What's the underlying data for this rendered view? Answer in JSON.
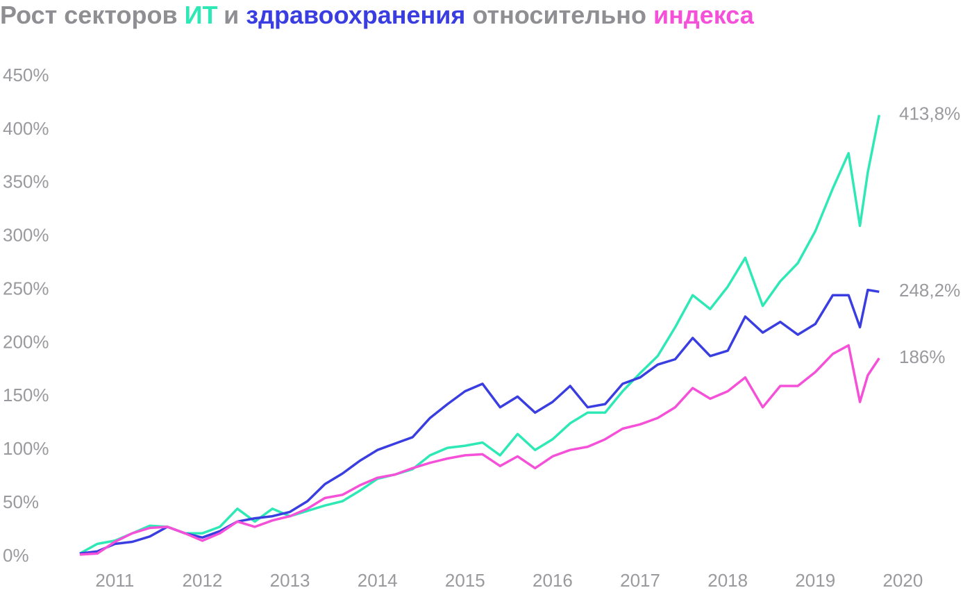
{
  "chart_data": {
    "type": "line",
    "title_parts": [
      "Рост секторов",
      "и",
      "относительно"
    ],
    "title_color": "#8e8e93",
    "xlim": [
      2010.45,
      2020.1
    ],
    "xticks": [
      2011,
      2012,
      2013,
      2014,
      2015,
      2016,
      2017,
      2018,
      2019,
      2020
    ],
    "ylim": [
      0,
      450
    ],
    "yticks": [
      {
        "value": 0,
        "label": "0%"
      },
      {
        "value": 50,
        "label": "50%"
      },
      {
        "value": 100,
        "label": "100%"
      },
      {
        "value": 150,
        "label": "150%"
      },
      {
        "value": 200,
        "label": "200%"
      },
      {
        "value": 250,
        "label": "250%"
      },
      {
        "value": 300,
        "label": "300%"
      },
      {
        "value": 350,
        "label": "350%"
      },
      {
        "value": 400,
        "label": "400%"
      },
      {
        "value": 450,
        "label": "450%"
      }
    ],
    "x": [
      2010.6,
      2010.8,
      2011.0,
      2011.2,
      2011.4,
      2011.6,
      2011.8,
      2012.0,
      2012.2,
      2012.4,
      2012.6,
      2012.8,
      2013.0,
      2013.2,
      2013.4,
      2013.6,
      2013.8,
      2014.0,
      2014.2,
      2014.4,
      2014.6,
      2014.8,
      2015.0,
      2015.2,
      2015.4,
      2015.6,
      2015.8,
      2016.0,
      2016.2,
      2016.4,
      2016.6,
      2016.8,
      2017.0,
      2017.2,
      2017.4,
      2017.6,
      2017.8,
      2018.0,
      2018.2,
      2018.4,
      2018.6,
      2018.8,
      2019.0,
      2019.2,
      2019.38,
      2019.51,
      2019.6,
      2019.73
    ],
    "series": [
      {
        "name": "ИТ",
        "color": "#2ee8b6",
        "values": [
          3,
          12,
          15,
          22,
          29,
          28,
          22,
          22,
          28,
          45,
          33,
          45,
          38,
          43,
          48,
          52,
          62,
          73,
          77,
          82,
          95,
          102,
          104,
          107,
          95,
          115,
          100,
          110,
          125,
          135,
          135,
          155,
          172,
          188,
          215,
          245,
          232,
          253,
          280,
          235,
          258,
          275,
          305,
          345,
          378,
          310,
          360,
          413.8
        ],
        "end_label": "413,8%"
      },
      {
        "name": "здравоохранения",
        "color": "#3a3ee0",
        "values": [
          3,
          5,
          12,
          14,
          19,
          28,
          22,
          18,
          24,
          33,
          36,
          38,
          42,
          52,
          68,
          78,
          90,
          100,
          106,
          112,
          130,
          143,
          155,
          162,
          140,
          150,
          135,
          145,
          160,
          140,
          143,
          162,
          168,
          180,
          185,
          205,
          188,
          193,
          225,
          210,
          220,
          208,
          218,
          245,
          245,
          215,
          250,
          248.2
        ],
        "end_label": "248,2%"
      },
      {
        "name": "индекса",
        "color": "#f550d8",
        "values": [
          2,
          3,
          14,
          22,
          27,
          28,
          22,
          15,
          22,
          33,
          28,
          34,
          38,
          45,
          55,
          58,
          67,
          74,
          77,
          83,
          88,
          92,
          95,
          96,
          85,
          94,
          83,
          94,
          100,
          103,
          110,
          120,
          124,
          130,
          140,
          158,
          148,
          155,
          168,
          140,
          160,
          160,
          173,
          190,
          198,
          145,
          170,
          186
        ],
        "end_label": "186%"
      }
    ]
  }
}
